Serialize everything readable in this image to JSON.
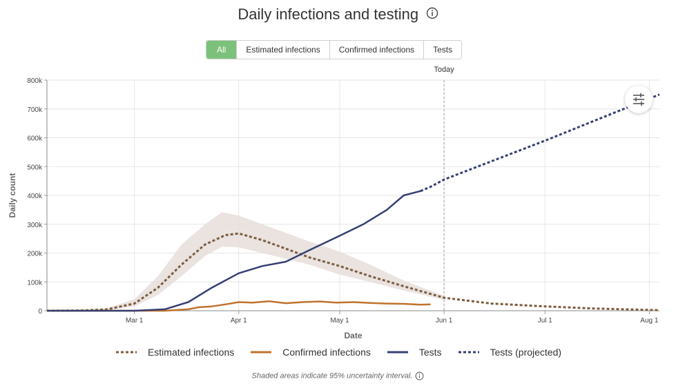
{
  "header": {
    "title": "Daily infections and testing",
    "info_icon": "info-circle-icon"
  },
  "tabs": [
    {
      "label": "All",
      "active": true
    },
    {
      "label": "Estimated infections",
      "active": false
    },
    {
      "label": "Confirmed infections",
      "active": false
    },
    {
      "label": "Tests",
      "active": false
    }
  ],
  "settings_icon": "sliders-icon",
  "footnote": "Shaded areas indicate 95% uncertainty interval.",
  "colors": {
    "estimated": "#7b5c3e",
    "confirmed": "#c0722c",
    "tests": "#363f73",
    "band": "#e6dedb",
    "active_tab": "#7cc17b"
  },
  "chart_data": {
    "type": "line",
    "xlabel": "Date",
    "ylabel": "Daily count",
    "x_ticks": [
      "Mar 1",
      "Apr 1",
      "May 1",
      "Jun 1",
      "Jul 1",
      "Aug 1"
    ],
    "y_ticks": [
      "0",
      "100k",
      "200k",
      "300k",
      "400k",
      "500k",
      "600k",
      "700k",
      "800k"
    ],
    "ylim": [
      0,
      800000
    ],
    "xlim": [
      "2020-02-04",
      "2020-08-04"
    ],
    "grid": true,
    "legend_position": "bottom",
    "annotations": [
      {
        "type": "vertical-line",
        "x": "2020-06-01",
        "label": "Today"
      }
    ],
    "series": [
      {
        "name": "Estimated infections",
        "style": "dotted",
        "x": [
          "2020-02-04",
          "2020-02-15",
          "2020-02-22",
          "2020-03-01",
          "2020-03-08",
          "2020-03-15",
          "2020-03-22",
          "2020-03-28",
          "2020-04-01",
          "2020-04-08",
          "2020-04-15",
          "2020-04-22",
          "2020-05-01",
          "2020-05-10",
          "2020-05-20",
          "2020-06-01",
          "2020-06-15",
          "2020-07-01",
          "2020-07-15",
          "2020-08-04"
        ],
        "values": [
          0,
          1000,
          5000,
          25000,
          80000,
          160000,
          230000,
          262000,
          268000,
          245000,
          215000,
          185000,
          155000,
          120000,
          85000,
          45000,
          25000,
          15000,
          8000,
          2000
        ]
      },
      {
        "name": "Confirmed infections",
        "style": "solid",
        "x": [
          "2020-02-04",
          "2020-03-10",
          "2020-03-17",
          "2020-03-20",
          "2020-03-24",
          "2020-03-28",
          "2020-04-01",
          "2020-04-05",
          "2020-04-10",
          "2020-04-15",
          "2020-04-20",
          "2020-04-25",
          "2020-04-30",
          "2020-05-05",
          "2020-05-10",
          "2020-05-15",
          "2020-05-20",
          "2020-05-25",
          "2020-05-28"
        ],
        "values": [
          0,
          0,
          5000,
          12000,
          15000,
          22000,
          30000,
          28000,
          33000,
          26000,
          30000,
          32000,
          28000,
          30000,
          27000,
          25000,
          24000,
          21000,
          22000
        ]
      },
      {
        "name": "Tests",
        "style": "solid",
        "x": [
          "2020-02-04",
          "2020-03-01",
          "2020-03-10",
          "2020-03-17",
          "2020-03-24",
          "2020-04-01",
          "2020-04-08",
          "2020-04-15",
          "2020-04-22",
          "2020-05-01",
          "2020-05-08",
          "2020-05-15",
          "2020-05-20",
          "2020-05-25"
        ],
        "values": [
          0,
          0,
          5000,
          30000,
          80000,
          130000,
          155000,
          170000,
          210000,
          260000,
          300000,
          350000,
          400000,
          415000
        ]
      },
      {
        "name": "Tests (projected)",
        "style": "dotted",
        "x": [
          "2020-05-25",
          "2020-05-28",
          "2020-06-01",
          "2020-07-01",
          "2020-08-04"
        ],
        "values": [
          415000,
          430000,
          455000,
          590000,
          750000
        ]
      }
    ],
    "uncertainty_band": {
      "series": "Estimated infections",
      "x": [
        "2020-02-15",
        "2020-02-22",
        "2020-03-01",
        "2020-03-08",
        "2020-03-15",
        "2020-03-22",
        "2020-03-27",
        "2020-04-01",
        "2020-04-08",
        "2020-04-15",
        "2020-04-22",
        "2020-05-01",
        "2020-05-10",
        "2020-05-20",
        "2020-06-01"
      ],
      "upper": [
        2000,
        9000,
        40000,
        120000,
        230000,
        300000,
        342000,
        330000,
        300000,
        270000,
        240000,
        205000,
        160000,
        105000,
        52000
      ],
      "lower": [
        500,
        2000,
        15000,
        55000,
        120000,
        190000,
        222000,
        220000,
        200000,
        180000,
        160000,
        125000,
        100000,
        70000,
        38000
      ]
    }
  }
}
